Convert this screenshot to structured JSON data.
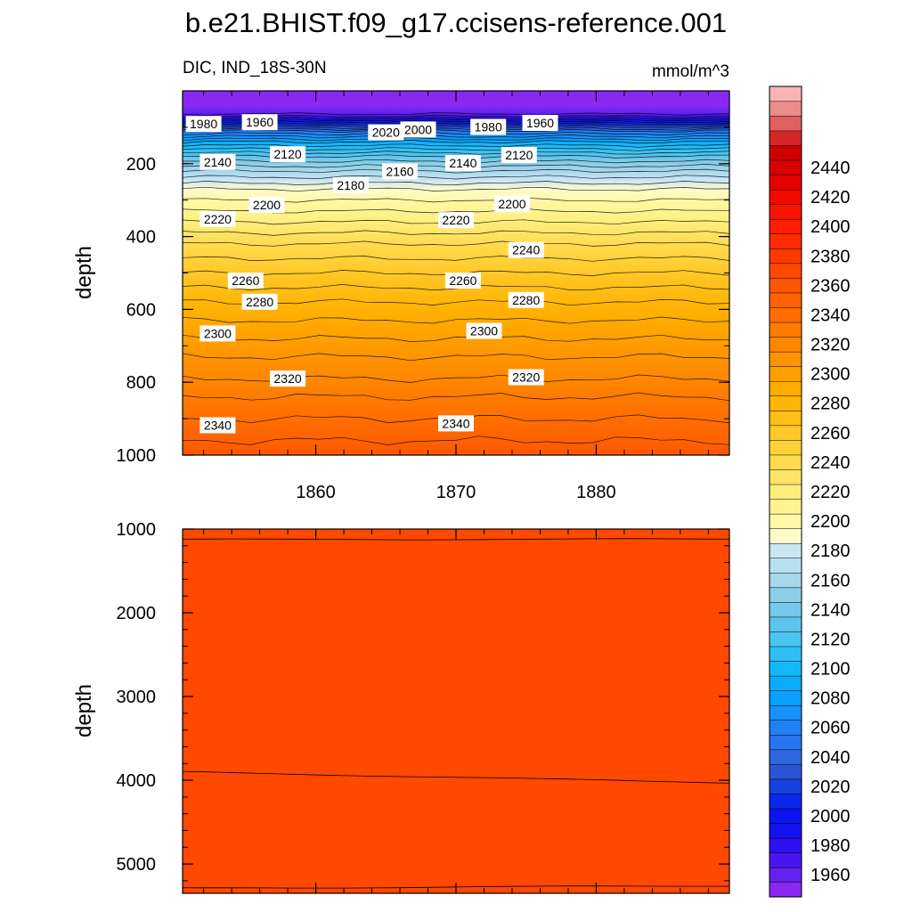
{
  "chart_data": {
    "type": "heatmap",
    "title": "b.e21.BHIST.f09_g17.ccisens-reference.001",
    "variable_label": "DIC, IND_18S-30N",
    "units_label": "mmol/m^3",
    "x": {
      "range": [
        1850.5,
        1889.5
      ],
      "major_ticks": [
        1860,
        1870,
        1880
      ],
      "major_tick_labels": [
        "1860",
        "1870",
        "1880"
      ],
      "minor_step": 2
    },
    "upper_panel": {
      "ylabel": "depth",
      "ylim": [
        1000,
        0
      ],
      "y_ticks": [
        200,
        400,
        600,
        800,
        1000
      ],
      "y_tick_labels": [
        "200",
        "400",
        "600",
        "800",
        "1000"
      ],
      "minor_step": 100,
      "surface_value": 1950,
      "profile_depths": [
        0,
        40,
        60,
        70,
        80,
        90,
        100,
        110,
        125,
        140,
        160,
        180,
        200,
        220,
        245,
        270,
        300,
        330,
        360,
        390,
        420,
        460,
        500,
        540,
        580,
        630,
        680,
        730,
        790,
        840,
        900,
        960,
        1000
      ],
      "profile_values": [
        1950,
        1950,
        1955,
        1970,
        1990,
        2010,
        2030,
        2050,
        2070,
        2090,
        2110,
        2130,
        2145,
        2160,
        2175,
        2190,
        2200,
        2210,
        2220,
        2230,
        2240,
        2250,
        2260,
        2270,
        2280,
        2290,
        2300,
        2310,
        2320,
        2330,
        2340,
        2350,
        2355
      ],
      "contour_labels": [
        {
          "text": "1980",
          "year": 1852.0,
          "depth": 91
        },
        {
          "text": "1960",
          "year": 1856.0,
          "depth": 86
        },
        {
          "text": "2020",
          "year": 1865.0,
          "depth": 114
        },
        {
          "text": "2000",
          "year": 1867.3,
          "depth": 106
        },
        {
          "text": "1980",
          "year": 1872.3,
          "depth": 99
        },
        {
          "text": "1960",
          "year": 1876.0,
          "depth": 88
        },
        {
          "text": "2140",
          "year": 1853.0,
          "depth": 195
        },
        {
          "text": "2120",
          "year": 1858.0,
          "depth": 174
        },
        {
          "text": "2160",
          "year": 1866.0,
          "depth": 221
        },
        {
          "text": "2140",
          "year": 1870.5,
          "depth": 198
        },
        {
          "text": "2120",
          "year": 1874.5,
          "depth": 176
        },
        {
          "text": "2180",
          "year": 1862.5,
          "depth": 259
        },
        {
          "text": "2200",
          "year": 1856.5,
          "depth": 313
        },
        {
          "text": "2200",
          "year": 1874.0,
          "depth": 310
        },
        {
          "text": "2220",
          "year": 1853.0,
          "depth": 352
        },
        {
          "text": "2220",
          "year": 1870.0,
          "depth": 355
        },
        {
          "text": "2240",
          "year": 1875.0,
          "depth": 437
        },
        {
          "text": "2260",
          "year": 1855.0,
          "depth": 521
        },
        {
          "text": "2260",
          "year": 1870.5,
          "depth": 521
        },
        {
          "text": "2280",
          "year": 1856.0,
          "depth": 579
        },
        {
          "text": "2280",
          "year": 1875.0,
          "depth": 574
        },
        {
          "text": "2300",
          "year": 1853.0,
          "depth": 666
        },
        {
          "text": "2300",
          "year": 1872.0,
          "depth": 659
        },
        {
          "text": "2320",
          "year": 1858.0,
          "depth": 790
        },
        {
          "text": "2320",
          "year": 1875.0,
          "depth": 786
        },
        {
          "text": "2340",
          "year": 1853.0,
          "depth": 918
        },
        {
          "text": "2340",
          "year": 1870.0,
          "depth": 913
        }
      ]
    },
    "lower_panel": {
      "ylabel": "depth",
      "ylim": [
        5350,
        1000
      ],
      "y_ticks": [
        1000,
        2000,
        3000,
        4000,
        5000
      ],
      "y_tick_labels": [
        "1000",
        "2000",
        "3000",
        "4000",
        "5000"
      ],
      "minor_step": 200,
      "fill_value": 2370,
      "contour_lines": [
        {
          "value": 2360,
          "depth_start": 1125,
          "depth_end": 1120
        },
        {
          "value": 2380,
          "depth_start": 3900,
          "depth_end": 4030
        },
        {
          "value": 2380,
          "depth_start": 5290,
          "depth_end": 5260
        }
      ]
    },
    "colorbar": {
      "levels": [
        1960,
        1980,
        2000,
        2020,
        2040,
        2060,
        2080,
        2100,
        2120,
        2140,
        2160,
        2180,
        2200,
        2220,
        2240,
        2260,
        2280,
        2300,
        2320,
        2340,
        2360,
        2380,
        2400,
        2420,
        2440
      ],
      "level_labels": [
        "1960",
        "1980",
        "2000",
        "2020",
        "2040",
        "2060",
        "2080",
        "2100",
        "2120",
        "2140",
        "2160",
        "2180",
        "2200",
        "2220",
        "2240",
        "2260",
        "2280",
        "2300",
        "2320",
        "2340",
        "2360",
        "2380",
        "2400",
        "2420",
        "2440"
      ],
      "interval": 10,
      "colors": [
        "#8a28f2",
        "#6422ee",
        "#4a16ee",
        "#2c10f0",
        "#1412ee",
        "#0a14f0",
        "#0c28ea",
        "#1840dd",
        "#2e54d6",
        "#2c68e0",
        "#2a74f0",
        "#1e82f6",
        "#1890fa",
        "#0aa0fc",
        "#0aacfc",
        "#14b8f8",
        "#2cc0f4",
        "#4ac4f0",
        "#5ec4ec",
        "#76c8ec",
        "#8ccee8",
        "#a6d8ee",
        "#b8dff0",
        "#c8e6f4",
        "#fffacc",
        "#fff8a8",
        "#fff394",
        "#ffee7c",
        "#ffe468",
        "#ffdb50",
        "#ffd23a",
        "#ffc828",
        "#ffbf18",
        "#ffb608",
        "#ffab00",
        "#ffa000",
        "#ff9400",
        "#ff8800",
        "#ff7c00",
        "#ff6e00",
        "#ff6200",
        "#ff5600",
        "#ff4800",
        "#ff3a00",
        "#ff2c00",
        "#ff1e00",
        "#f81200",
        "#f00a00",
        "#e60000",
        "#d80000",
        "#cc0000",
        "#d42828",
        "#e06060",
        "#ec8c8c",
        "#f8b4b4"
      ]
    }
  }
}
